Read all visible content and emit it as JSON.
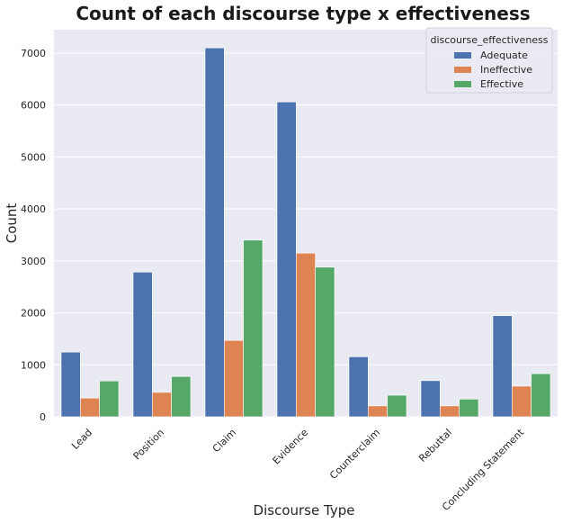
{
  "chart_data": {
    "type": "bar",
    "title": "Count of each discourse type x effectiveness",
    "xlabel": "Discourse Type",
    "ylabel": "Count",
    "ylim": [
      0,
      7450
    ],
    "yticks": [
      0,
      1000,
      2000,
      3000,
      4000,
      5000,
      6000,
      7000
    ],
    "grid": true,
    "legend_title": "discourse_effectiveness",
    "legend_position": "top-right",
    "categories": [
      "Lead",
      "Position",
      "Claim",
      "Evidence",
      "Counterclaim",
      "Rebuttal",
      "Concluding Statement"
    ],
    "series": [
      {
        "name": "Adequate",
        "color": "#4c72b0",
        "values": [
          1245,
          2785,
          7100,
          6060,
          1155,
          695,
          1945
        ]
      },
      {
        "name": "Ineffective",
        "color": "#dd8452",
        "values": [
          360,
          470,
          1470,
          3150,
          210,
          210,
          590
        ]
      },
      {
        "name": "Effective",
        "color": "#55a868",
        "values": [
          690,
          775,
          3400,
          2880,
          415,
          340,
          830
        ]
      }
    ],
    "background_color": "#eaeaf2",
    "grid_color": "#ffffff"
  }
}
